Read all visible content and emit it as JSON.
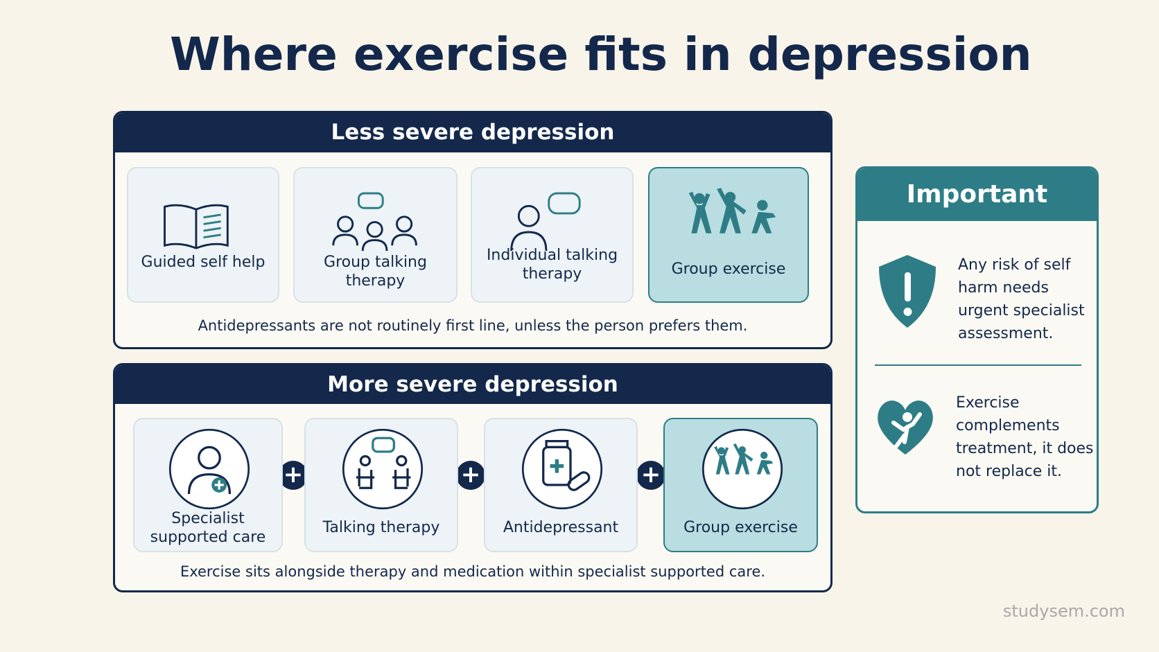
{
  "title": "Where exercise fits in depression",
  "less_severe": {
    "heading": "Less severe depression",
    "options": [
      "Guided self help",
      "Group talking therapy",
      "Individual talking therapy",
      "Group exercise"
    ],
    "note": "Antidepressants are not routinely first line, unless the person prefers them."
  },
  "more_severe": {
    "heading": "More severe depression",
    "steps": [
      "Specialist supported care",
      "Talking therapy",
      "Antidepressant",
      "Group exercise"
    ],
    "note": "Exercise sits alongside therapy and medication within specialist supported care."
  },
  "important": {
    "heading": "Important",
    "items": [
      "Any risk of self harm needs urgent specialist assessment.",
      "Exercise complements treatment, it does not replace it."
    ]
  },
  "footer": "studysem.com"
}
